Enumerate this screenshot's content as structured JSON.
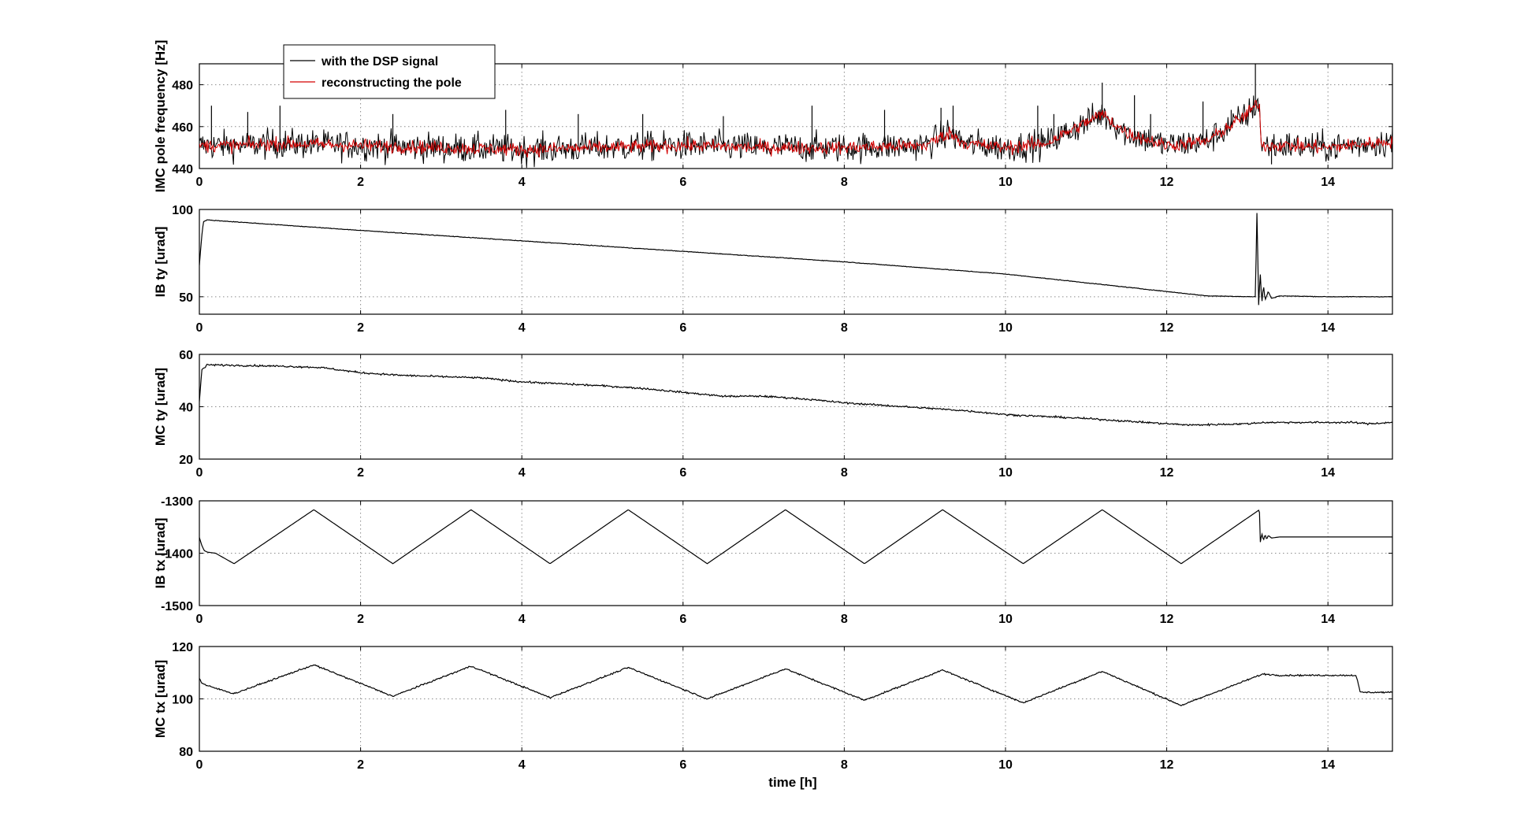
{
  "figure": {
    "xlabel": "time [h]"
  },
  "chart_data": [
    {
      "type": "line",
      "ylabel": "IMC pole frequency [Hz]",
      "xlim": [
        0,
        14.8
      ],
      "ylim": [
        440,
        490
      ],
      "xticks": [
        0,
        2,
        4,
        6,
        8,
        10,
        12,
        14
      ],
      "yticks": [
        440,
        460,
        480
      ],
      "grid": true,
      "legend": "top-left",
      "noise": 6,
      "series": [
        {
          "name": "with the DSP signal",
          "color": "#000000",
          "x": [
            0,
            0.5,
            1,
            2,
            3,
            4,
            5,
            6,
            7,
            8,
            9,
            9.3,
            9.5,
            10,
            10.5,
            11,
            11.2,
            11.5,
            12,
            12.5,
            13,
            13.15,
            13.17,
            13.5,
            14,
            14.8
          ],
          "y": [
            451,
            451,
            452,
            451,
            450,
            449,
            450,
            451,
            450,
            450,
            451,
            457,
            452,
            450,
            452,
            462,
            466,
            457,
            451,
            453,
            466,
            472,
            451,
            451,
            450,
            453
          ],
          "spikes": [
            [
              0.15,
              470
            ],
            [
              0.6,
              467
            ],
            [
              1.0,
              470
            ],
            [
              2.4,
              466
            ],
            [
              3.8,
              468
            ],
            [
              4.7,
              466
            ],
            [
              5.5,
              466
            ],
            [
              6.5,
              465
            ],
            [
              7.6,
              470
            ],
            [
              8.5,
              468
            ],
            [
              9.2,
              469
            ],
            [
              9.35,
              470
            ],
            [
              10.4,
              470
            ],
            [
              10.6,
              466
            ],
            [
              11.6,
              475
            ],
            [
              11.8,
              466
            ],
            [
              12.45,
              472
            ],
            [
              12.8,
              468
            ],
            [
              13.1,
              490
            ],
            [
              11.2,
              481
            ],
            [
              13.3,
              442
            ]
          ]
        },
        {
          "name": "reconstructing the pole",
          "color": "#d40000",
          "x": [
            0,
            0.5,
            1,
            2,
            3,
            4,
            5,
            6,
            7,
            8,
            9,
            9.3,
            9.5,
            10,
            10.5,
            11,
            11.2,
            11.5,
            12,
            12.5,
            13,
            13.15,
            13.17,
            13.5,
            14,
            14.8
          ],
          "y": [
            451,
            451,
            452,
            451,
            450,
            449,
            450,
            451,
            450,
            450,
            451,
            457,
            452,
            450,
            452,
            462,
            466,
            457,
            451,
            453,
            466,
            472,
            451,
            451,
            450,
            453
          ]
        }
      ]
    },
    {
      "type": "line",
      "ylabel": "IB ty [urad]",
      "xlim": [
        0,
        14.8
      ],
      "ylim": [
        40,
        100
      ],
      "xticks": [
        0,
        2,
        4,
        6,
        8,
        10,
        12,
        14
      ],
      "yticks": [
        50,
        100
      ],
      "grid": true,
      "noise": 0.15,
      "series": [
        {
          "name": "",
          "color": "#000000",
          "x": [
            0,
            0.03,
            0.05,
            0.1,
            2,
            4,
            6,
            8,
            10,
            12,
            12.5,
            13.1,
            13.12,
            13.14,
            13.16,
            13.18,
            13.2,
            13.22,
            13.26,
            13.3,
            13.4,
            14,
            14.8
          ],
          "y": [
            68,
            85,
            93,
            94,
            88,
            82,
            76,
            70,
            63,
            53,
            50.5,
            50,
            100,
            45,
            64,
            46,
            57,
            48,
            53,
            49,
            50.5,
            50,
            50
          ]
        }
      ]
    },
    {
      "type": "line",
      "ylabel": "MC ty [urad]",
      "xlim": [
        0,
        14.8
      ],
      "ylim": [
        20,
        60
      ],
      "xticks": [
        0,
        2,
        4,
        6,
        8,
        10,
        12,
        14
      ],
      "yticks": [
        20,
        40,
        60
      ],
      "grid": true,
      "noise": 0.3,
      "series": [
        {
          "name": "",
          "color": "#000000",
          "x": [
            0,
            0.03,
            0.1,
            1,
            1.5,
            2,
            2.5,
            3,
            3.5,
            4,
            5,
            5.5,
            6,
            6.5,
            7,
            7.5,
            8,
            8.5,
            9,
            9.5,
            10,
            11,
            12,
            12.3,
            13,
            13.2,
            13.5,
            14,
            14.3,
            14.5,
            14.8
          ],
          "y": [
            42,
            54,
            56,
            55.5,
            55,
            53,
            52,
            51.5,
            51,
            49.5,
            48,
            47,
            45.5,
            44,
            44,
            43,
            41.5,
            40.5,
            39.5,
            38.5,
            37,
            35.5,
            33.5,
            33,
            33.5,
            34,
            34,
            34,
            34,
            33.5,
            34
          ]
        }
      ]
    },
    {
      "type": "line",
      "ylabel": "IB tx [urad]",
      "xlim": [
        0,
        14.8
      ],
      "ylim": [
        -1500,
        -1300
      ],
      "xticks": [
        0,
        2,
        4,
        6,
        8,
        10,
        12,
        14
      ],
      "yticks": [
        -1500,
        -1400,
        -1300
      ],
      "grid": true,
      "noise": 0,
      "series": [
        {
          "name": "",
          "color": "#000000",
          "x": [
            0,
            0.03,
            0.06,
            0.1,
            0.2,
            0.43,
            1.42,
            2.4,
            3.37,
            4.35,
            5.32,
            6.3,
            7.27,
            8.25,
            9.22,
            10.22,
            11.2,
            12.18,
            13.15,
            13.16,
            13.18,
            13.2,
            13.22,
            13.24,
            13.26,
            13.3,
            13.4,
            14,
            14.8
          ],
          "y": [
            -1370,
            -1385,
            -1395,
            -1398,
            -1400,
            -1420,
            -1317,
            -1420,
            -1317,
            -1420,
            -1317,
            -1420,
            -1317,
            -1420,
            -1317,
            -1420,
            -1317,
            -1420,
            -1317,
            -1380,
            -1362,
            -1376,
            -1364,
            -1374,
            -1366,
            -1371,
            -1369,
            -1369,
            -1369
          ]
        }
      ]
    },
    {
      "type": "line",
      "ylabel": "MC tx [urad]",
      "xlim": [
        0,
        14.8
      ],
      "ylim": [
        80,
        120
      ],
      "xticks": [
        0,
        2,
        4,
        6,
        8,
        10,
        12,
        14
      ],
      "yticks": [
        80,
        100,
        120
      ],
      "grid": true,
      "noise": 0.25,
      "series": [
        {
          "name": "",
          "color": "#000000",
          "x": [
            0,
            0.03,
            0.1,
            0.43,
            1.42,
            2.4,
            3.37,
            4.35,
            5.32,
            6.3,
            7.27,
            8.25,
            9.22,
            10.22,
            11.2,
            12.18,
            13.15,
            13.2,
            13.4,
            14.0,
            14.35,
            14.4,
            14.8
          ],
          "y": [
            108,
            106,
            105,
            102,
            113,
            101,
            112.5,
            100.5,
            112,
            100,
            111.5,
            99.5,
            111,
            98.5,
            110.5,
            97.5,
            109,
            109.5,
            109,
            109,
            109,
            102.5,
            102.5
          ]
        }
      ]
    }
  ]
}
